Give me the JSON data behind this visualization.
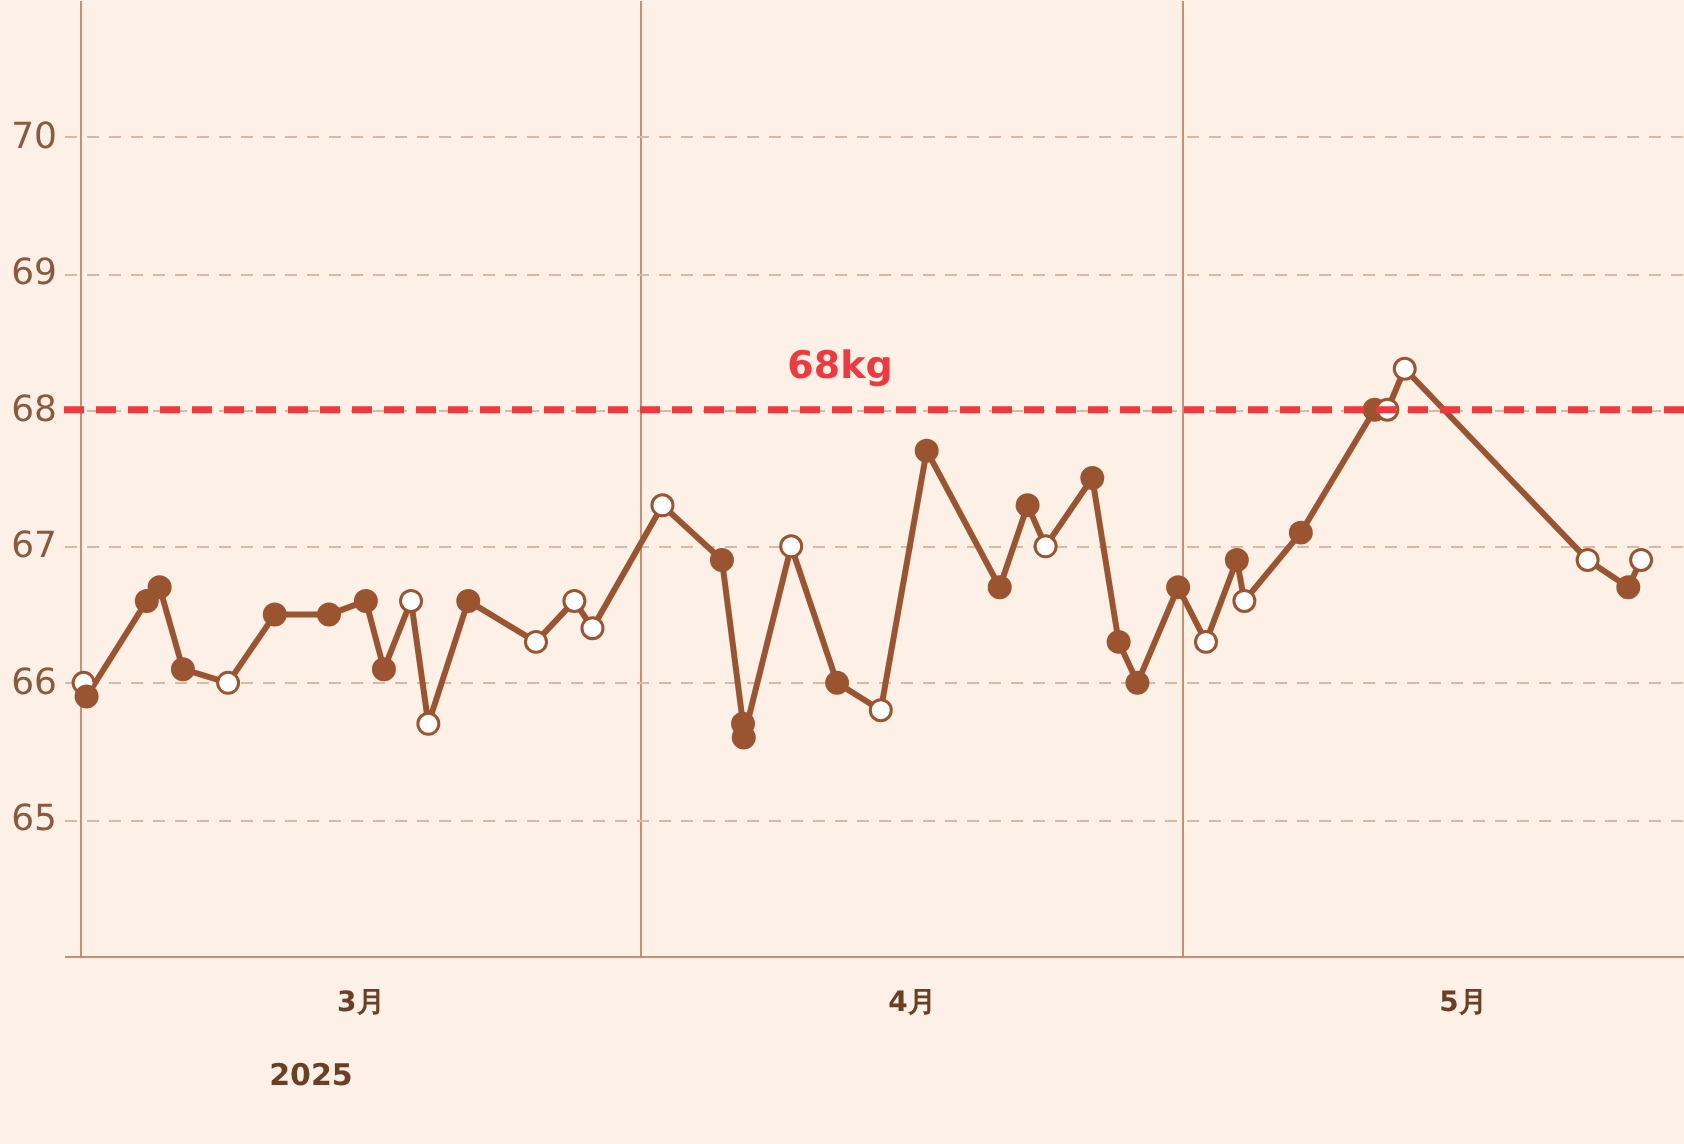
{
  "chart_data": {
    "type": "line",
    "x": [
      "2025-03-01T05:00",
      "2025-03-01T09:00",
      "2025-03-04T17:00",
      "2025-03-05T10:00",
      "2025-03-06T17:00",
      "2025-03-09T05:00",
      "2025-03-11T19:00",
      "2025-03-14T19:00",
      "2025-03-16T20:00",
      "2025-03-17T20:00",
      "2025-03-19T08:00",
      "2025-03-20T07:00",
      "2025-03-22T12:00",
      "2025-03-26T06:00",
      "2025-03-28T09:00",
      "2025-03-29T09:00",
      "2025-04-02T06:00",
      "2025-04-05T13:00",
      "2025-04-06T17:00",
      "2025-04-06T18:00",
      "2025-04-09T09:00",
      "2025-04-11T22:00",
      "2025-04-14T08:00",
      "2025-04-16T21:00",
      "2025-04-20T22:00",
      "2025-04-22T11:00",
      "2025-04-23T11:00",
      "2025-04-26T01:00",
      "2025-04-27T12:00",
      "2025-04-28T13:00",
      "2025-04-30T19:00",
      "2025-05-02T08:00",
      "2025-05-04T01:00",
      "2025-05-04T11:00",
      "2025-05-07T14:00",
      "2025-05-11T16:00",
      "2025-05-12T09:00",
      "2025-05-13T08:00",
      "2025-05-23T11:00",
      "2025-05-25T17:00",
      "2025-05-26T10:00"
    ],
    "series": [
      {
        "color": "#9b5430",
        "values": [
          66.0,
          65.9,
          66.6,
          66.7,
          66.1,
          66.0,
          66.5,
          66.5,
          66.6,
          66.1,
          66.6,
          65.7,
          66.6,
          66.3,
          66.6,
          66.4,
          67.3,
          66.9,
          65.7,
          65.6,
          67.0,
          66.0,
          65.8,
          67.7,
          66.7,
          67.3,
          67.0,
          67.5,
          66.3,
          66.0,
          66.7,
          66.3,
          66.9,
          66.6,
          67.1,
          68.0,
          68.0,
          68.3,
          66.9,
          66.7,
          66.9
        ],
        "colors": [
          "#ffffff",
          "#9b5430",
          "#9b5430",
          "#9b5430",
          "#9b5430",
          "#ffffff",
          "#9b5430",
          "#9b5430",
          "#9b5430",
          "#9b5430",
          "#ffffff",
          "#ffffff",
          "#9b5430",
          "#ffffff",
          "#ffffff",
          "#ffffff",
          "#ffffff",
          "#9b5430",
          "#9b5430",
          "#9b5430",
          "#ffffff",
          "#9b5430",
          "#ffffff",
          "#9b5430",
          "#9b5430",
          "#9b5430",
          "#ffffff",
          "#9b5430",
          "#9b5430",
          "#9b5430",
          "#9b5430",
          "#ffffff",
          "#9b5430",
          "#ffffff",
          "#9b5430",
          "#9b5430",
          "#ffffff",
          "#ffffff",
          "#ffffff",
          "#9b5430",
          "#ffffff"
        ]
      }
    ],
    "xlim": [
      "2025-02-28T03:00",
      "2025-05-28T19:00"
    ],
    "xticks": [
      {
        "value": "2025-03-01",
        "label": null
      },
      {
        "value": "2025-03-16T12:00",
        "label": "3月"
      },
      {
        "value": "2025-04-01",
        "label": null
      },
      {
        "value": "2025-04-16",
        "label": "4月"
      },
      {
        "value": "2025-05-01",
        "label": null
      },
      {
        "value": "2025-05-16T12:00",
        "label": "5月"
      }
    ],
    "xlabel": "2025",
    "ylim": [
      64,
      71
    ],
    "yticks": [
      65,
      66,
      67,
      68,
      69,
      70
    ],
    "ref_lines": [
      {
        "axis": "y",
        "value": 68,
        "label": "68kg",
        "color": "#f0393f",
        "line_style": "dashed"
      }
    ],
    "grid": true,
    "marker": "circle",
    "line_style": "solid"
  }
}
